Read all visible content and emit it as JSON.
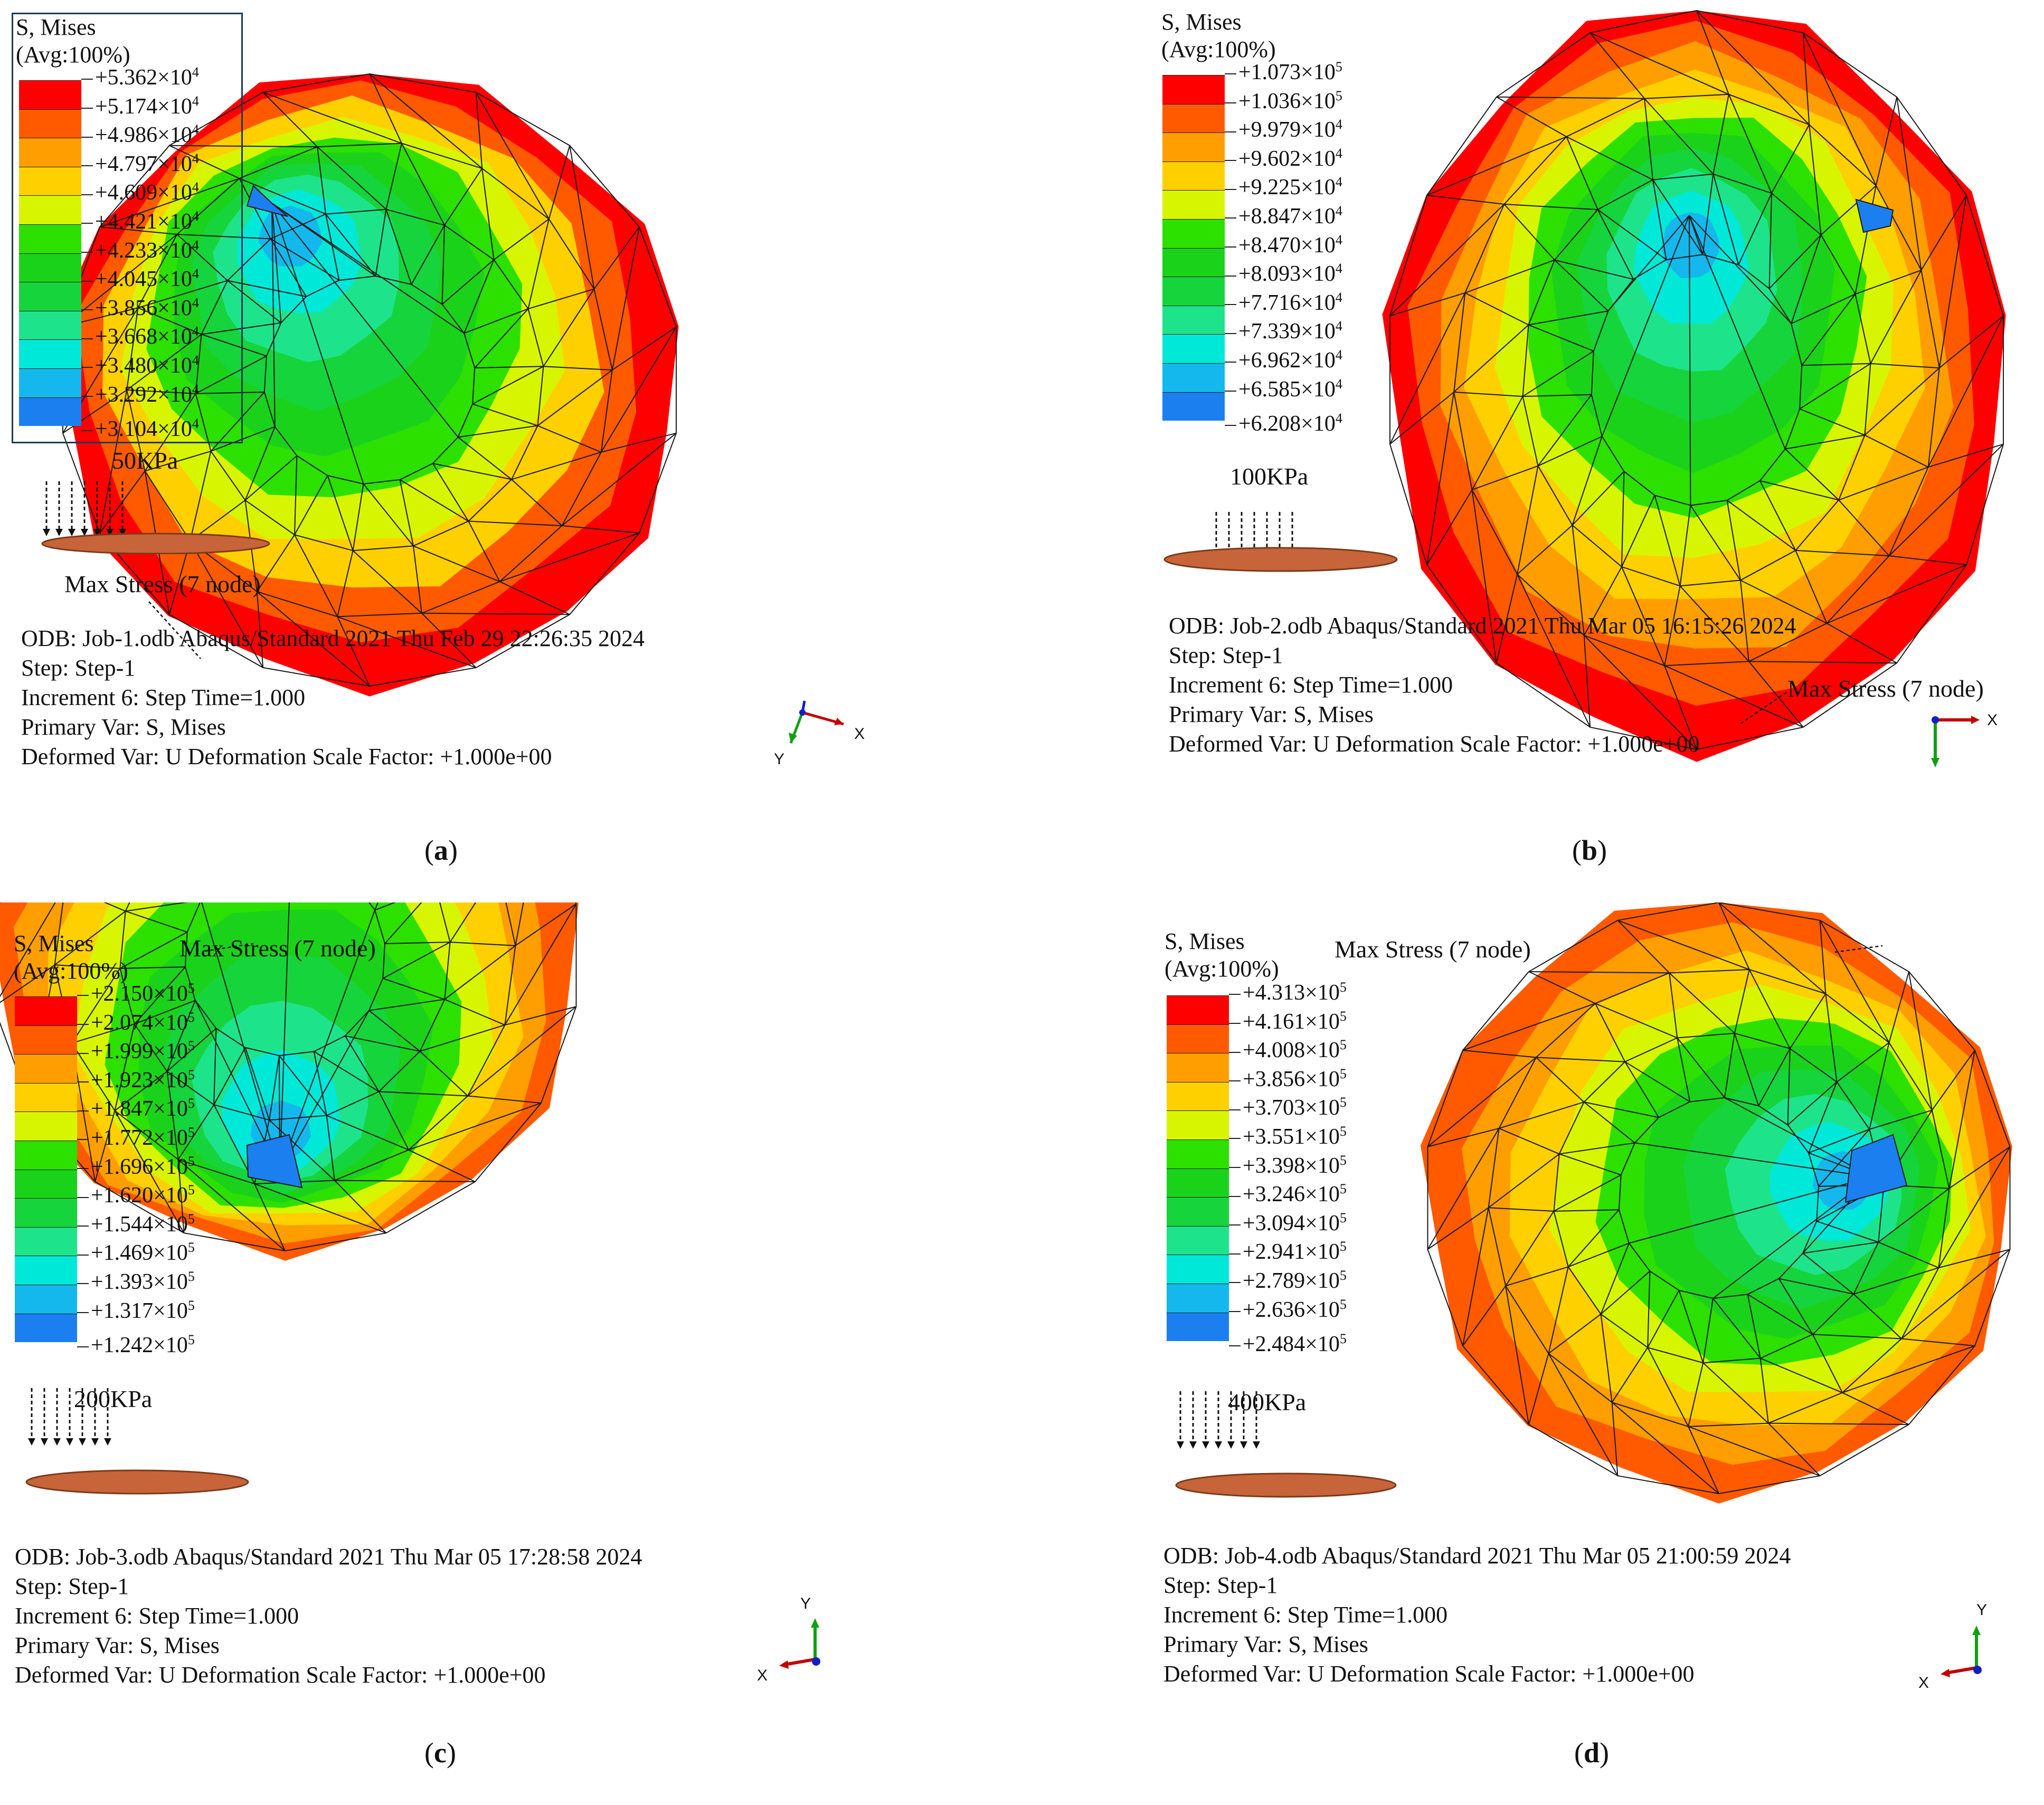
{
  "panels": [
    {
      "id": "a",
      "caption_letter": "a",
      "legend_title": "S, Mises",
      "legend_avg": "(Avg:100%)",
      "legend_values": [
        "+5.362×10",
        "+5.174×10",
        "+4.986×10",
        "+4.797×10",
        "+4.609×10",
        "+4.421×10",
        "+4.233×10",
        "+4.045×10",
        "+3.856×10",
        "+3.668×10",
        "+3.480×10",
        "+3.292×10",
        "+3.104×10"
      ],
      "legend_exp": "4",
      "pressure": "50KPa",
      "max_label": "Max Stress (7 node)",
      "odb": "ODB: Job-1.odb Abaqus/Standard 2021 Thu Feb 29 22:26:35 2024",
      "step": "Step: Step-1",
      "increment": "Increment 6: Step Time=1.000",
      "primary": "Primary Var: S, Mises",
      "deformed": "Deformed Var: U Deformation Scale Factor: +1.000e+00",
      "axis_h": "X",
      "axis_v": "Y"
    },
    {
      "id": "b",
      "caption_letter": "b",
      "legend_title": "S,  Mises",
      "legend_avg": "(Avg:100%)",
      "legend_values": [
        "+1.073×10",
        "+1.036×10",
        "+9.979×10",
        "+9.602×10",
        "+9.225×10",
        "+8.847×10",
        "+8.470×10",
        "+8.093×10",
        "+7.716×10",
        "+7.339×10",
        "+6.962×10",
        "+6.585×10",
        "+6.208×10"
      ],
      "legend_exp_list": [
        "5",
        "5",
        "4",
        "4",
        "4",
        "4",
        "4",
        "4",
        "4",
        "4",
        "4",
        "4",
        "4"
      ],
      "pressure": "100KPa",
      "max_label": "Max Stress (7 node)",
      "odb": "ODB: Job-2.odb Abaqus/Standard 2021 Thu Mar 05 16:15:26 2024",
      "step": "Step: Step-1",
      "increment": "Increment 6: Step Time=1.000",
      "primary": "Primary Var: S, Mises",
      "deformed": "Deformed Var: U Deformation Scale Factor: +1.000e+00",
      "axis_h": "X",
      "axis_v": ""
    },
    {
      "id": "c",
      "caption_letter": "c",
      "legend_title": "S,  Mises",
      "legend_avg": "(Avg:100%)",
      "legend_values": [
        "+2.150×10",
        "+2.074×10",
        "+1.999×10",
        "+1.923×10",
        "+1.847×10",
        "+1.772×10",
        "+1.696×10",
        "+1.620×10",
        "+1.544×10",
        "+1.469×10",
        "+1.393×10",
        "+1.317×10",
        "+1.242×10"
      ],
      "legend_exp": "5",
      "pressure": "200KPa",
      "max_label": "Max Stress (7 node)",
      "odb": "ODB: Job-3.odb Abaqus/Standard 2021 Thu Mar 05 17:28:58 2024",
      "step": "Step: Step-1",
      "increment": "Increment 6: Step Time=1.000",
      "primary": "Primary Var: S, Mises",
      "deformed": "Deformed Var: U Deformation Scale Factor: +1.000e+00",
      "axis_h": "X",
      "axis_v": "Y"
    },
    {
      "id": "d",
      "caption_letter": "d",
      "legend_title": "S,  Mises",
      "legend_avg": "(Avg:100%)",
      "legend_values": [
        "+4.313×10",
        "+4.161×10",
        "+4.008×10",
        "+3.856×10",
        "+3.703×10",
        "+3.551×10",
        "+3.398×10",
        "+3.246×10",
        "+3.094×10",
        "+2.941×10",
        "+2.789×10",
        "+2.636×10",
        "+2.484×10"
      ],
      "legend_exp": "5",
      "pressure": "400KPa",
      "max_label": "Max Stress (7 node)",
      "odb": "ODB: Job-4.odb Abaqus/Standard 2021 Thu Mar 05 21:00:59 2024",
      "step": "Step: Step-1",
      "increment": "Increment 6: Step Time=1.000",
      "primary": "Primary Var: S, Mises",
      "deformed": "Deformed Var: U Deformation Scale Factor: +1.000e+00",
      "axis_h": "X",
      "axis_v": "Y"
    }
  ],
  "colors": {
    "scale": [
      "#ff0000",
      "#ff5a00",
      "#ff9e00",
      "#ffd000",
      "#d8f500",
      "#2ce000",
      "#1bd21b",
      "#16d43c",
      "#1de48a",
      "#00e8d8",
      "#14b8ec",
      "#1c7ff0",
      "#1010f0"
    ],
    "pad": "#c8643a",
    "axis_x": "#c00000",
    "axis_y": "#10a010",
    "axis_z": "#1020c0"
  }
}
